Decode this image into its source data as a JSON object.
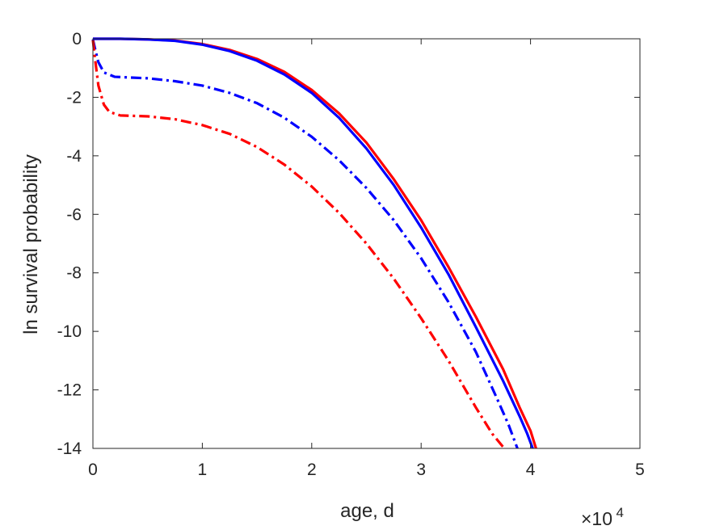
{
  "chart_data": {
    "type": "line",
    "title": "",
    "xlabel": "age, d",
    "ylabel": "ln survival probability",
    "x_exponent": {
      "base": "×10",
      "power": "4"
    },
    "xlim": [
      0,
      50000
    ],
    "ylim": [
      -14,
      0
    ],
    "xticks": [
      0,
      10000,
      20000,
      30000,
      40000,
      50000
    ],
    "xtick_labels": [
      "0",
      "1",
      "2",
      "3",
      "4",
      "5"
    ],
    "yticks": [
      0,
      -2,
      -4,
      -6,
      -8,
      -10,
      -12,
      -14
    ],
    "ytick_labels": [
      "0",
      "-2",
      "-4",
      "-6",
      "-8",
      "-10",
      "-12",
      "-14"
    ],
    "grid": false,
    "legend": "none",
    "series": [
      {
        "color": "#ff0000",
        "style": "solid",
        "points": [
          [
            0,
            0
          ],
          [
            2500,
            0
          ],
          [
            5000,
            -0.02
          ],
          [
            7500,
            -0.06
          ],
          [
            10000,
            -0.18
          ],
          [
            12500,
            -0.38
          ],
          [
            15000,
            -0.69
          ],
          [
            17500,
            -1.13
          ],
          [
            20000,
            -1.75
          ],
          [
            22500,
            -2.55
          ],
          [
            25000,
            -3.55
          ],
          [
            27500,
            -4.8
          ],
          [
            30000,
            -6.2
          ],
          [
            32500,
            -7.8
          ],
          [
            35000,
            -9.5
          ],
          [
            37500,
            -11.3
          ],
          [
            39000,
            -12.6
          ],
          [
            40000,
            -13.4
          ],
          [
            40500,
            -14
          ]
        ]
      },
      {
        "color": "#0000ff",
        "style": "solid",
        "points": [
          [
            0,
            0
          ],
          [
            2500,
            0
          ],
          [
            5000,
            -0.02
          ],
          [
            7500,
            -0.07
          ],
          [
            10000,
            -0.2
          ],
          [
            12500,
            -0.42
          ],
          [
            15000,
            -0.75
          ],
          [
            17500,
            -1.22
          ],
          [
            20000,
            -1.85
          ],
          [
            22500,
            -2.7
          ],
          [
            25000,
            -3.75
          ],
          [
            27500,
            -5.0
          ],
          [
            30000,
            -6.45
          ],
          [
            32500,
            -8.05
          ],
          [
            35000,
            -9.85
          ],
          [
            37500,
            -11.7
          ],
          [
            39000,
            -12.9
          ],
          [
            39700,
            -13.5
          ],
          [
            40200,
            -14
          ]
        ]
      },
      {
        "color": "#0000ff",
        "style": "dash-dot",
        "points": [
          [
            0,
            -0.02
          ],
          [
            200,
            -0.35
          ],
          [
            500,
            -0.8
          ],
          [
            1000,
            -1.15
          ],
          [
            2000,
            -1.3
          ],
          [
            5000,
            -1.35
          ],
          [
            7500,
            -1.45
          ],
          [
            10000,
            -1.6
          ],
          [
            12500,
            -1.85
          ],
          [
            15000,
            -2.2
          ],
          [
            17500,
            -2.7
          ],
          [
            20000,
            -3.35
          ],
          [
            22500,
            -4.15
          ],
          [
            25000,
            -5.1
          ],
          [
            27500,
            -6.2
          ],
          [
            30000,
            -7.5
          ],
          [
            32500,
            -9.0
          ],
          [
            35000,
            -10.7
          ],
          [
            37000,
            -12.35
          ],
          [
            38000,
            -13.2
          ],
          [
            38800,
            -14
          ]
        ]
      },
      {
        "color": "#ff0000",
        "style": "dash-dot",
        "points": [
          [
            0,
            -0.05
          ],
          [
            200,
            -0.7
          ],
          [
            500,
            -1.6
          ],
          [
            1000,
            -2.25
          ],
          [
            1500,
            -2.5
          ],
          [
            2500,
            -2.62
          ],
          [
            5000,
            -2.65
          ],
          [
            7500,
            -2.75
          ],
          [
            10000,
            -2.95
          ],
          [
            12500,
            -3.25
          ],
          [
            15000,
            -3.7
          ],
          [
            17500,
            -4.3
          ],
          [
            20000,
            -5.05
          ],
          [
            22500,
            -5.95
          ],
          [
            25000,
            -7.0
          ],
          [
            27500,
            -8.2
          ],
          [
            30000,
            -9.55
          ],
          [
            32500,
            -11.0
          ],
          [
            35000,
            -12.6
          ],
          [
            36500,
            -13.5
          ],
          [
            37600,
            -14
          ]
        ]
      }
    ]
  }
}
